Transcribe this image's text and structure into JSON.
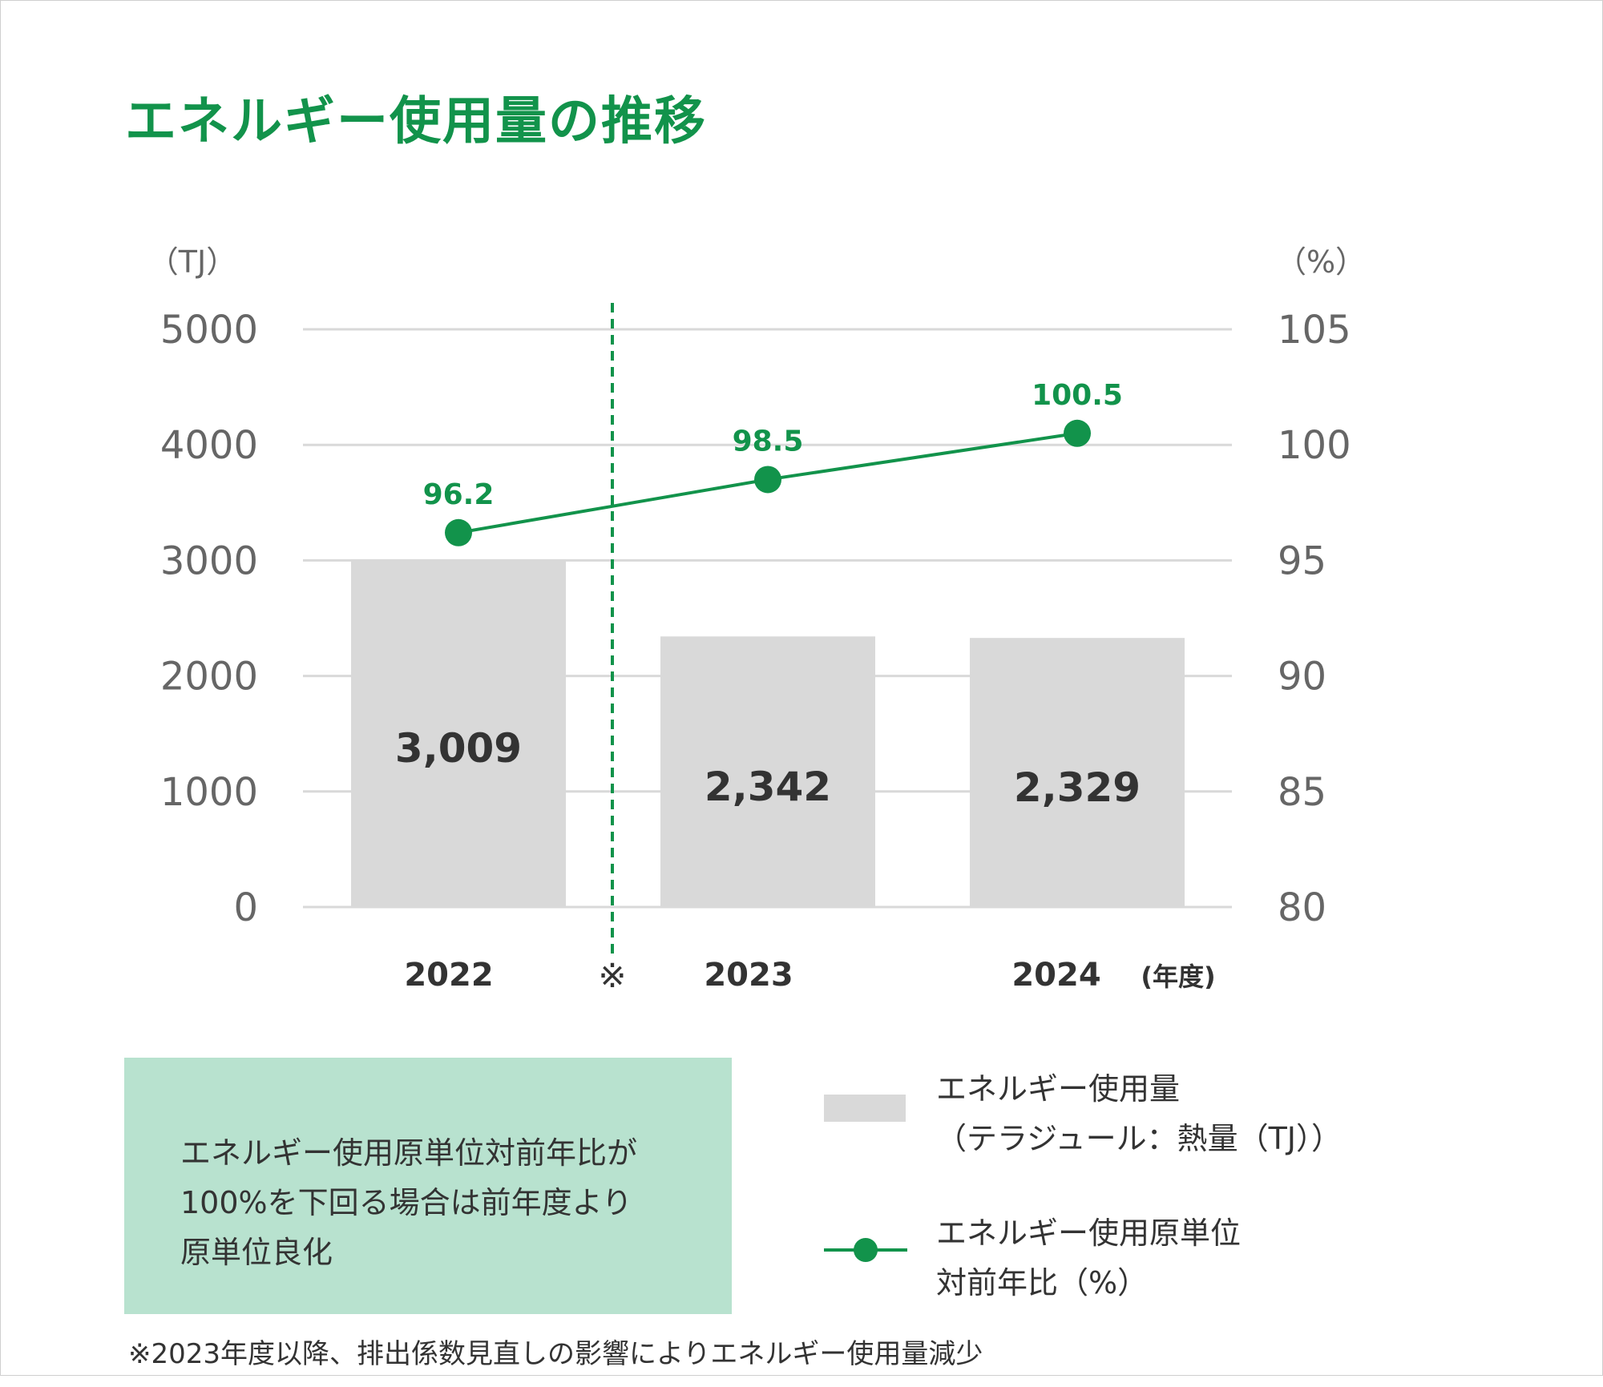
{
  "title": "エネルギー使用量の推移",
  "chart_data": {
    "type": "bar+line",
    "categories": [
      "2022",
      "2023",
      "2024"
    ],
    "xlabel": "(年度)",
    "y_left_unit": "（TJ）",
    "y_right_unit": "（%）",
    "y_left_ticks": [
      "0",
      "1000",
      "2000",
      "3000",
      "4000",
      "5000"
    ],
    "y_right_ticks": [
      "80",
      "85",
      "90",
      "95",
      "100",
      "105"
    ],
    "ylim_left": [
      0,
      5000
    ],
    "ylim_right": [
      80,
      105
    ],
    "grid": true,
    "series": [
      {
        "name": "エネルギー使用量（テラジュール：熱量（TJ））",
        "type": "bar",
        "axis": "left",
        "values": [
          3009,
          2342,
          2329
        ],
        "labels": [
          "3,009",
          "2,342",
          "2,329"
        ],
        "color": "#d9d9d9"
      },
      {
        "name": "エネルギー使用原単位対前年比（%）",
        "type": "line",
        "axis": "right",
        "values": [
          96.2,
          98.5,
          100.5
        ],
        "labels": [
          "96.2",
          "98.5",
          "100.5"
        ],
        "color": "#12934b"
      }
    ],
    "annotation_marker": "※"
  },
  "note_box": {
    "lines": [
      "エネルギー使用原単位対前年比が",
      "100%を下回る場合は前年度より",
      "原単位良化"
    ]
  },
  "legend": {
    "bar_line1": "エネルギー使用量",
    "bar_line2": "（テラジュール：熱量（TJ））",
    "line_line1": "エネルギー使用原単位",
    "line_line2": "対前年比（%）"
  },
  "footnote": "※2023年度以降、排出係数見直しの影響によりエネルギー使用量減少",
  "colors": {
    "accent": "#12934b",
    "bar": "#d9d9d9",
    "note_bg": "#b8e2cf",
    "grid": "#d9d9d9"
  }
}
